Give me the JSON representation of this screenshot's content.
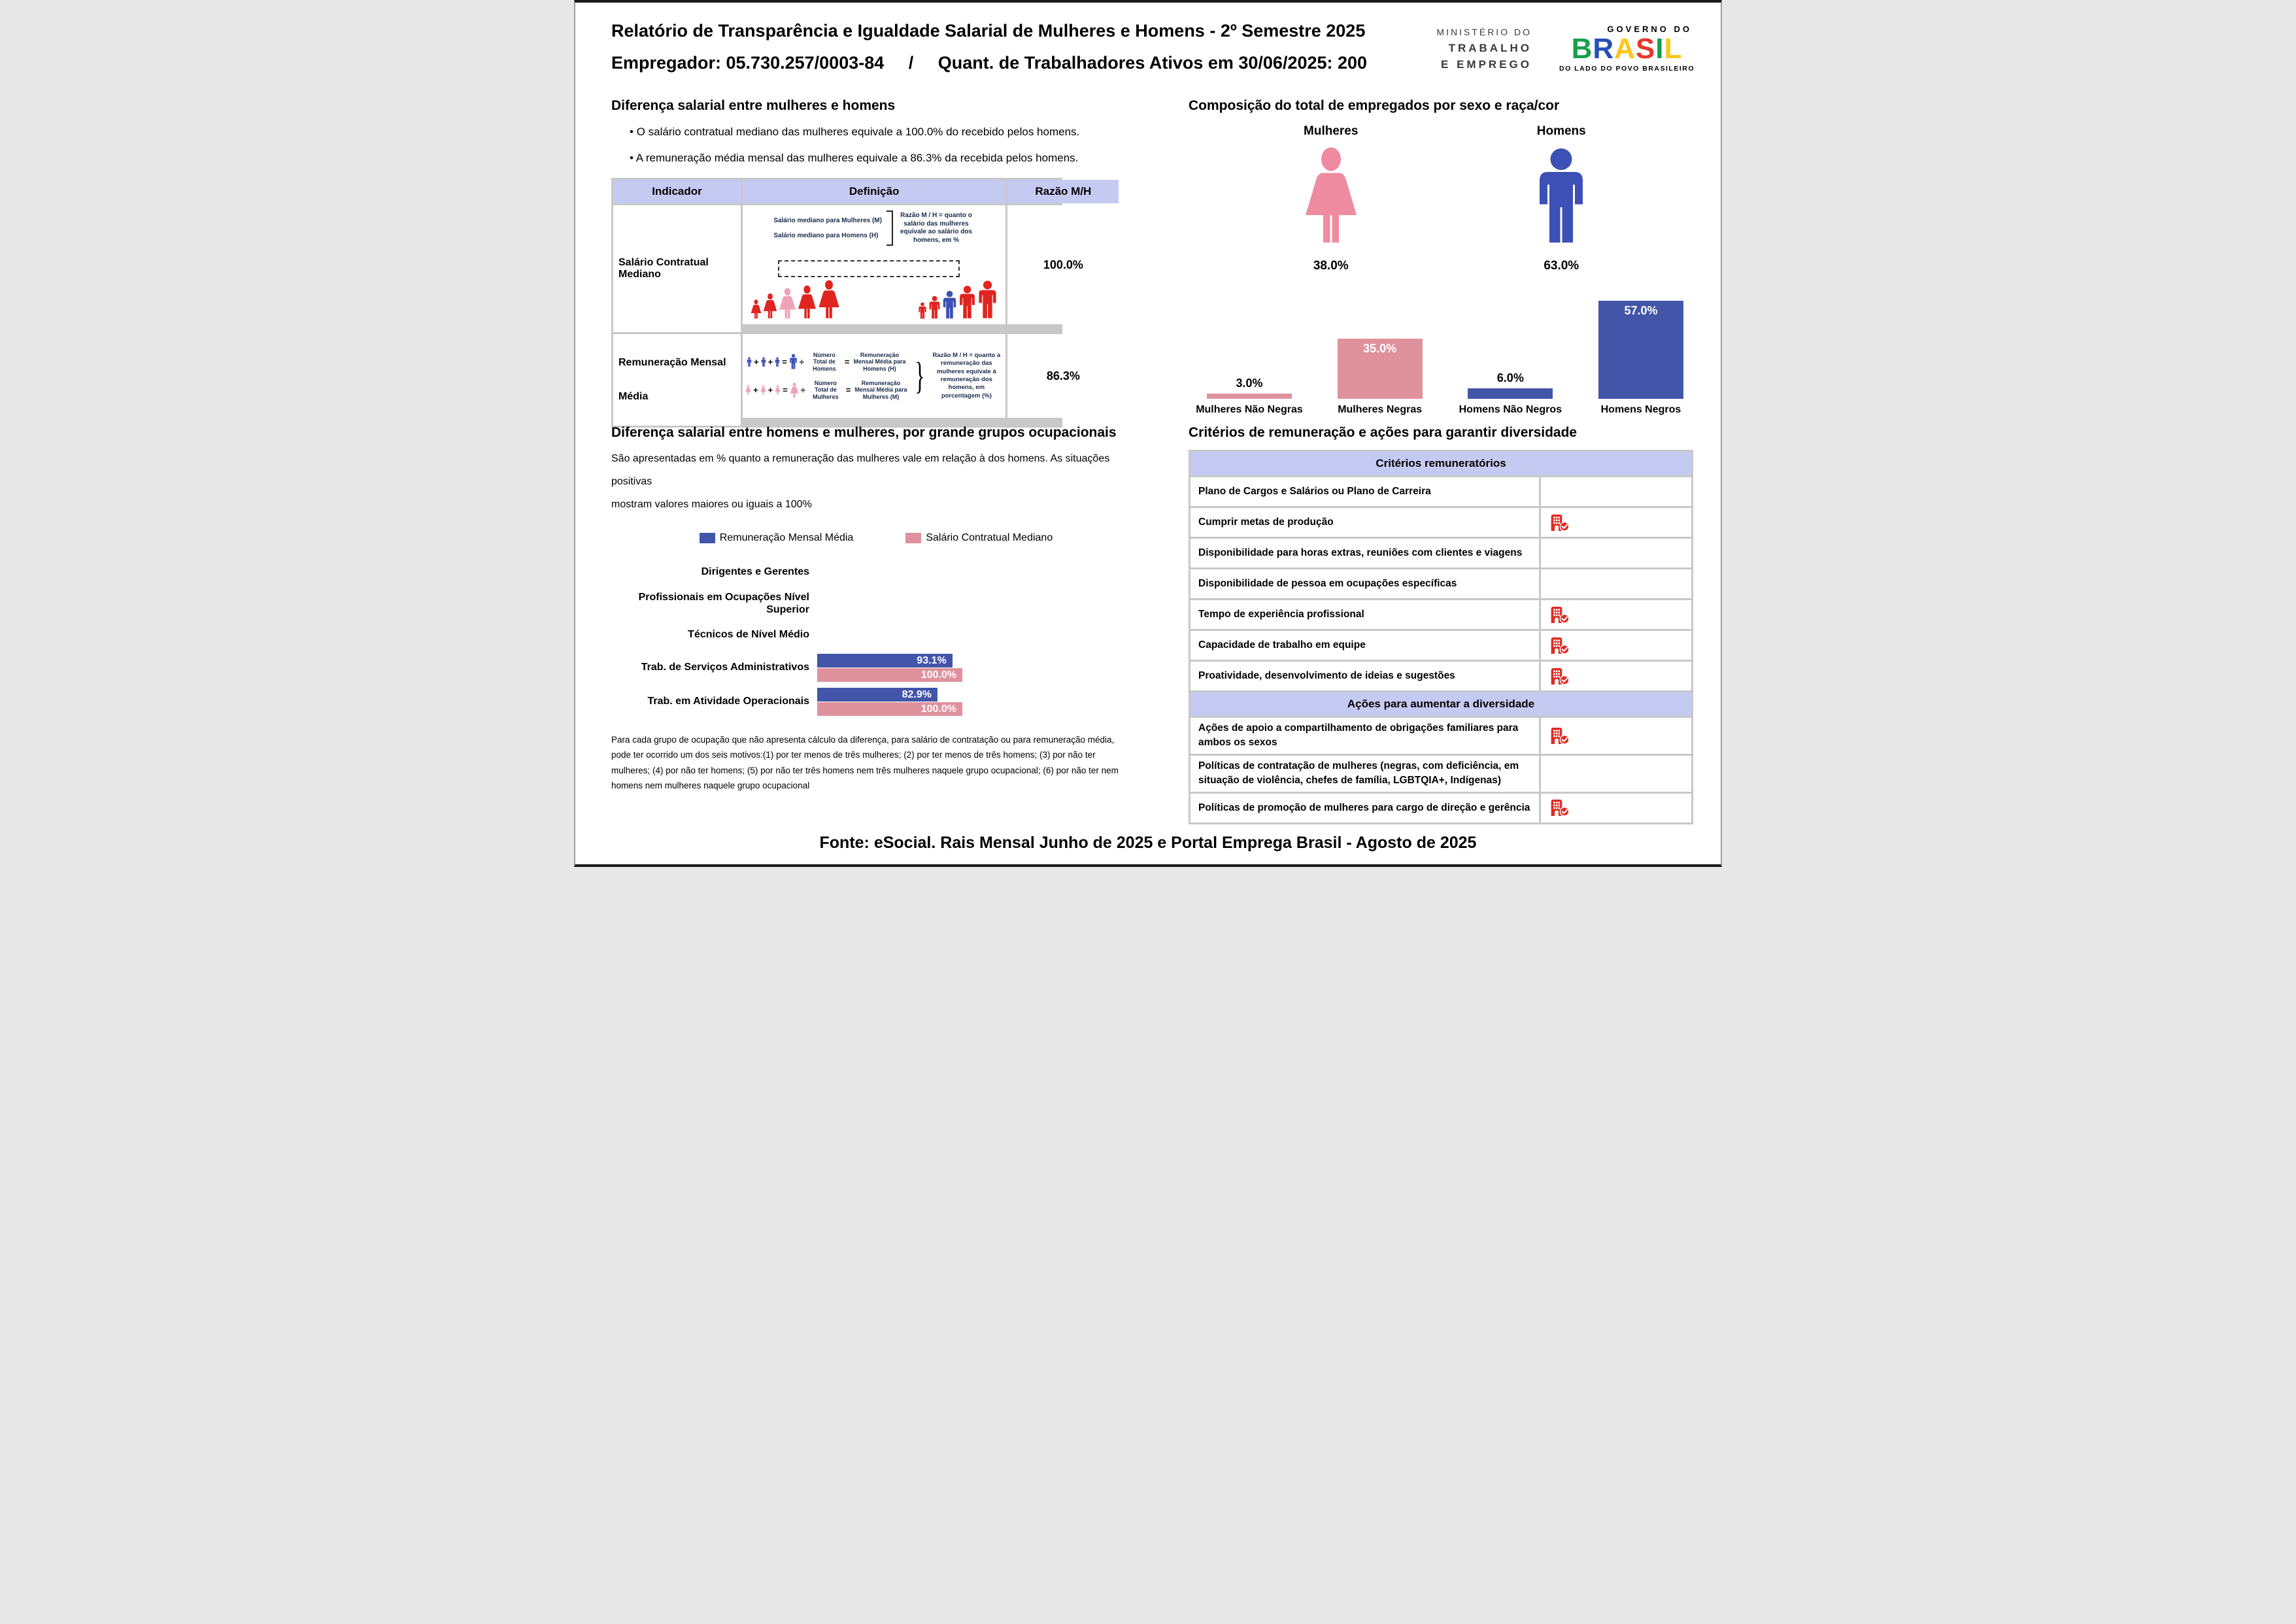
{
  "header": {
    "title_line1": "Relatório de Transparência e Igualdade Salarial de Mulheres e Homens - 2º Semestre 2025",
    "title_line2": "Empregador: 05.730.257/0003-84     /     Quant. de Trabalhadores Ativos em 30/06/2025: 200",
    "ministry_logo": {
      "line1": "MINISTÉRIO DO",
      "line2": "TRABALHO",
      "line3": "E EMPREGO"
    },
    "gov_logo": {
      "top": "GOVERNO DO",
      "letters": [
        "B",
        "R",
        "A",
        "S",
        "I",
        "L"
      ],
      "tagline": "DO LADO DO POVO BRASILEIRO"
    }
  },
  "salary_gap": {
    "title": "Diferença salarial entre mulheres e homens",
    "bullet_mark": "•",
    "bullet1": "O salário contratual mediano das mulheres equivale a 100.0% do recebido pelos homens.",
    "bullet2": "A remuneração média mensal das mulheres equivale a 86.3% da recebida pelos homens.",
    "table": {
      "col1": "Indicador",
      "col2": "Definição",
      "col3": "Razão M/H",
      "row1": {
        "label": "Salário Contratual Mediano",
        "value": "100.0%",
        "def_line1": "Salário mediano para Mulheres (M)",
        "def_line2": "Salário mediano para Homens (H)",
        "def_expl": "Razão M / H = quanto o salário das mulheres equivale ao salário dos homens, em %"
      },
      "row2": {
        "label_line1": "Remuneração Mensal",
        "label_line2": "Média",
        "value": "86.3%",
        "plus": "+",
        "equals": "=",
        "divide": "÷",
        "men_num": "Número Total de Homens",
        "men_rem": "Remuneração Mensal Média para Homens (H)",
        "women_num": "Número Total de Mulheres",
        "women_rem": "Remuneração Mensal Média para Mulheres (M)",
        "def_expl": "Razão M / H = quanto a remuneração das mulheres equivale à remuneração dos homens, em porcentagem (%)"
      }
    }
  },
  "composition": {
    "title": "Composição do total de empregados por sexo e raça/cor"
  },
  "occupational": {
    "title": "Diferença salarial entre homens e mulheres, por grande grupos ocupacionais",
    "subtitle_line1": "São apresentadas em % quanto a remuneração das mulheres vale em relação à dos homens. As situações positivas",
    "subtitle_line2": "mostram valores maiores ou iguais a 100%"
  },
  "criteria": {
    "title": "Critérios de remuneração e ações para garantir diversidade",
    "header1": "Critérios remuneratórios",
    "header2": "Ações para aumentar a diversidade",
    "rows1": [
      {
        "label": "Plano de Cargos e Salários ou Plano de Carreira",
        "has_icon": false
      },
      {
        "label": "Cumprir metas de produção",
        "has_icon": true
      },
      {
        "label": "Disponibilidade para horas extras, reuniões com clientes e viagens",
        "has_icon": false
      },
      {
        "label": "Disponibilidade de pessoa em ocupações específicas",
        "has_icon": false
      },
      {
        "label": "Tempo de experiência profissional",
        "has_icon": true
      },
      {
        "label": "Capacidade de trabalho em equipe",
        "has_icon": true
      },
      {
        "label": "Proatividade, desenvolvimento de ideias e sugestões",
        "has_icon": true
      }
    ],
    "rows2": [
      {
        "label": "Ações de apoio a compartilhamento de obrigações familiares para ambos os sexos",
        "has_icon": true
      },
      {
        "label": "Políticas de contratação de mulheres (negras, com deficiência, em situação de violência, chefes de família, LGBTQIA+, Indígenas)",
        "has_icon": false
      },
      {
        "label": "Políticas de promoção de mulheres para cargo de direção e gerência",
        "has_icon": true
      }
    ]
  },
  "footnote": "Para cada grupo de ocupação que não apresenta cálculo da diferença, para salário de contratação ou para remuneração média, pode ter ocorrido um dos seis motivos:(1) por ter menos de três mulheres; (2) por ter menos de três homens; (3) por não ter mulheres; (4) por não ter homens; (5) por não ter três homens nem três mulheres naquele grupo ocupacional; (6) por não ter nem homens nem mulheres naquele grupo ocupacional",
  "footer": "Fonte: eSocial. Rais Mensal Junho de 2025 e Portal Emprega Brasil - Agosto de 2025",
  "colors": {
    "bar_blue": "#4355a8",
    "bar_pink": "#df929e",
    "man_icon_blue": "#3c50b5",
    "woman_icon_pink": "#ef8ba1",
    "figure_red": "#e0241f",
    "figure_light_pink": "#f0a3b8",
    "table_header_purple": "#c5caf2",
    "grid_gray": "#c8c8c8",
    "icon_red": "#e02a21"
  },
  "chart_data": [
    {
      "type": "bar",
      "title": "Composição do total de empregados por sexo e raça/cor",
      "categories": [
        "Mulheres Não Negras",
        "Mulheres Negras",
        "Homens Não Negros",
        "Homens Negros"
      ],
      "values": [
        3.0,
        35.0,
        6.0,
        57.0
      ],
      "value_labels": [
        "3.0%",
        "35.0%",
        "6.0%",
        "57.0%"
      ],
      "gender_split": {
        "labels": [
          "Mulheres",
          "Homens"
        ],
        "values": [
          38.0,
          63.0
        ],
        "value_labels": [
          "38.0%",
          "63.0%"
        ]
      },
      "xlabel": "",
      "ylabel": "",
      "ylim": [
        0,
        60
      ],
      "grid": false,
      "legend": false
    },
    {
      "type": "bar",
      "orientation": "horizontal",
      "title": "Diferença salarial entre homens e mulheres, por grande grupos ocupacionais",
      "categories": [
        "Dirigentes e Gerentes",
        "Profissionais em Ocupações Nível Superior",
        "Técnicos de Nível Médio",
        "Trab. de Serviços Administrativos",
        "Trab. em Atividade Operacionais"
      ],
      "series": [
        {
          "name": "Remuneração Mensal Média",
          "values": [
            null,
            null,
            null,
            93.1,
            82.9
          ],
          "value_labels": [
            null,
            null,
            null,
            "93.1%",
            "82.9%"
          ]
        },
        {
          "name": "Salário Contratual Mediano",
          "values": [
            null,
            null,
            null,
            100.0,
            100.0
          ],
          "value_labels": [
            null,
            null,
            null,
            "100.0%",
            "100.0%"
          ]
        }
      ],
      "xlabel": "",
      "ylabel": "",
      "xlim": [
        0,
        110
      ],
      "grid": false,
      "legend_position": "top"
    }
  ]
}
